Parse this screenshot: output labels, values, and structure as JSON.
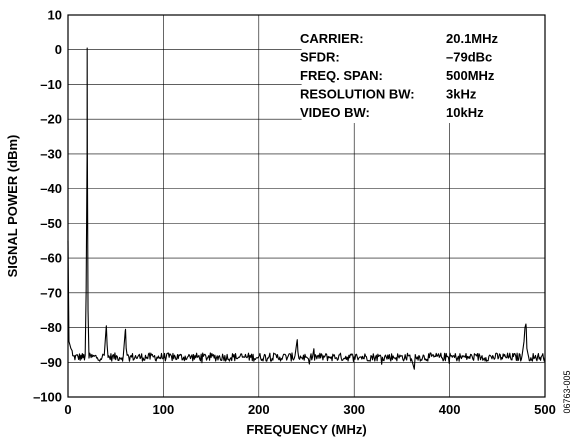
{
  "figure_id": "06763-005",
  "chart_data": {
    "type": "line",
    "title": "",
    "xlabel": "FREQUENCY (MHz)",
    "ylabel": "SIGNAL POWER (dBm)",
    "xlim": [
      0,
      500
    ],
    "ylim": [
      -100,
      10
    ],
    "x_ticks": [
      0,
      100,
      200,
      300,
      400,
      500
    ],
    "y_ticks": [
      10,
      0,
      -10,
      -20,
      -30,
      -40,
      -50,
      -60,
      -70,
      -80,
      -90,
      -100
    ],
    "x_tick_labels": [
      "0",
      "100",
      "200",
      "300",
      "400",
      "500"
    ],
    "y_tick_labels": [
      "10",
      "0",
      "–10",
      "–20",
      "–30",
      "–40",
      "–50",
      "–60",
      "–70",
      "–80",
      "–90",
      "–100"
    ],
    "grid": true,
    "series": [
      {
        "noise_floor_dbm": -88.5,
        "noise_ripple_db": 1.2,
        "x": [
          0,
          1,
          2,
          3,
          5,
          8,
          12,
          15,
          18,
          19,
          20,
          20.1,
          20.3,
          21,
          22,
          25,
          30,
          35,
          38,
          40,
          40.2,
          41,
          42,
          45,
          50,
          55,
          58,
          60,
          60.3,
          61,
          62,
          70,
          90,
          110,
          130,
          150,
          170,
          190,
          210,
          230,
          238,
          240,
          240.3,
          241,
          242,
          250,
          252,
          253,
          254,
          260,
          280,
          300,
          320,
          340,
          355,
          360,
          362,
          363,
          364,
          370,
          390,
          410,
          430,
          450,
          460,
          470,
          476,
          478,
          479,
          480,
          480.3,
          481,
          482,
          490,
          500
        ],
        "y": [
          -55,
          -84,
          -85,
          -86,
          -87,
          -88,
          -89,
          -89,
          -88,
          -70,
          -30,
          0.5,
          -30,
          -75,
          -88,
          -89,
          -88.5,
          -89,
          -88,
          -80,
          -79.5,
          -85,
          -88.5,
          -89,
          -88.5,
          -89,
          -88,
          -81,
          -80.5,
          -86,
          -88.5,
          -88.5,
          -88,
          -88.8,
          -88.2,
          -88.6,
          -88.1,
          -88.7,
          -88.3,
          -88.5,
          -88,
          -84,
          -83.5,
          -87,
          -88.5,
          -88.5,
          -89,
          -90.5,
          -89,
          -88.5,
          -88.2,
          -88.6,
          -88.3,
          -88.7,
          -88.4,
          -89,
          -91,
          -92,
          -89,
          -88.5,
          -88.3,
          -88.6,
          -88.2,
          -88.5,
          -88.4,
          -88.3,
          -88,
          -84,
          -80,
          -79,
          -80,
          -86,
          -88.5,
          -88.4,
          -88.5
        ]
      }
    ],
    "annotation": {
      "rows": [
        {
          "label": "CARRIER:",
          "value": "20.1MHz"
        },
        {
          "label": "SFDR:",
          "value": "–79dBc"
        },
        {
          "label": "FREQ. SPAN:",
          "value": "500MHz"
        },
        {
          "label": "RESOLUTION BW:",
          "value": "3kHz"
        },
        {
          "label": "VIDEO BW:",
          "value": "10kHz"
        }
      ]
    }
  }
}
